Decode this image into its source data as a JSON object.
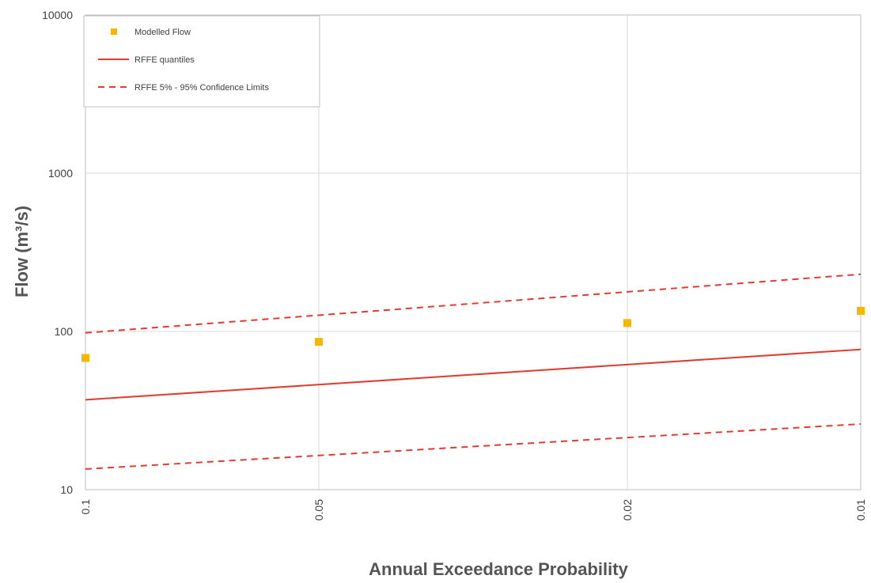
{
  "chart_data": {
    "type": "scatter",
    "title": "",
    "xlabel": "Annual Exceedance Probability",
    "ylabel": "Flow (m³/s)",
    "x_scale": "log-reciprocal",
    "y_scale": "log",
    "xlim": [
      0.1,
      0.01
    ],
    "ylim": [
      10,
      10000
    ],
    "x_ticks": [
      "0.1",
      "0.05",
      "0.02",
      "0.01"
    ],
    "y_ticks": [
      "10",
      "100",
      "1000",
      "10000"
    ],
    "grid": true,
    "legend_position": "top-left",
    "series": [
      {
        "name": "Modelled Flow",
        "kind": "marker",
        "color": "#F5B800",
        "x": [
          0.1,
          0.05,
          0.02,
          0.01
        ],
        "y": [
          68,
          86,
          113,
          135
        ]
      },
      {
        "name": "RFFE quantiles",
        "kind": "line",
        "color": "#E03C31",
        "x": [
          0.1,
          0.01
        ],
        "y": [
          37,
          77
        ]
      },
      {
        "name": "RFFE 5% - 95% Confidence Limits",
        "kind": "dashed",
        "color": "#E03C31",
        "x": [
          0.1,
          0.01
        ],
        "y": [
          98,
          230
        ]
      },
      {
        "name": "",
        "kind": "dashed",
        "color": "#E03C31",
        "x": [
          0.1,
          0.01
        ],
        "y": [
          13.5,
          26
        ]
      }
    ]
  }
}
